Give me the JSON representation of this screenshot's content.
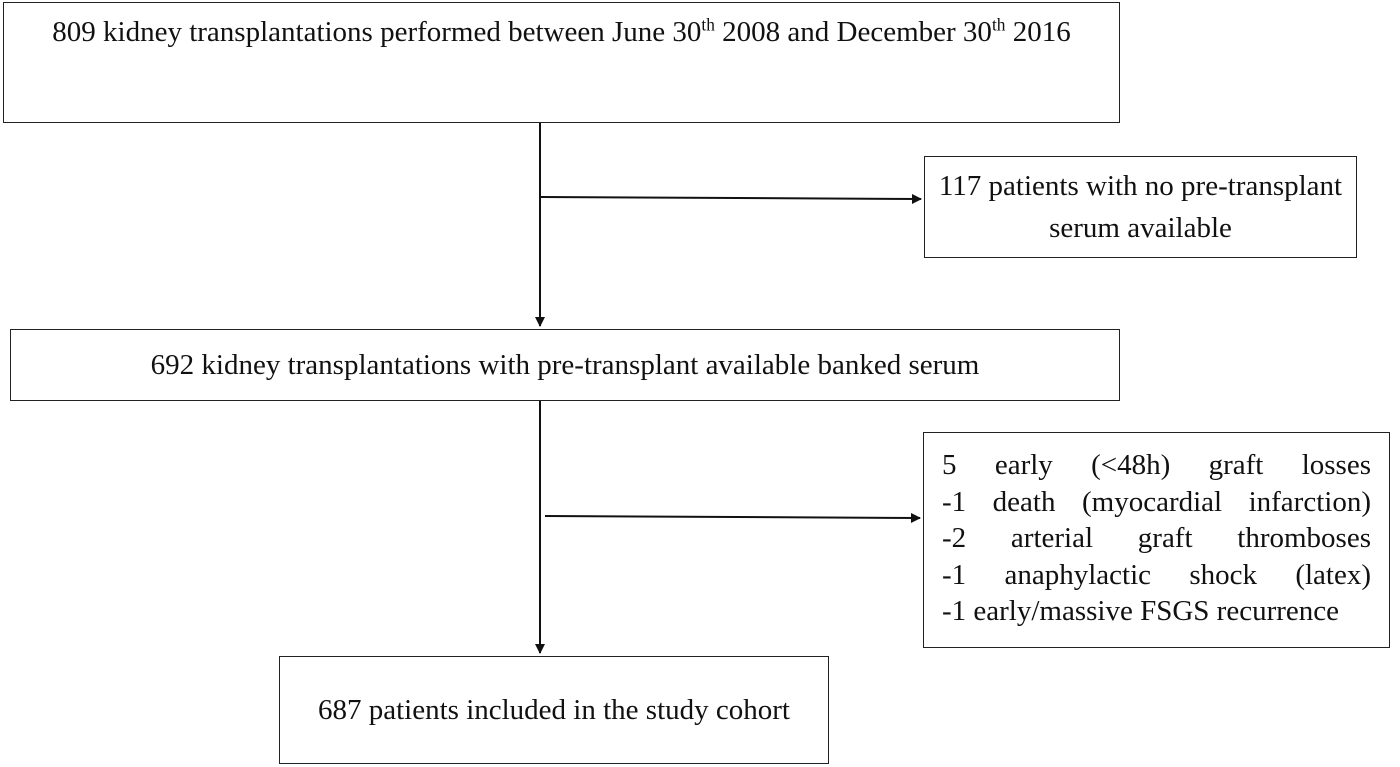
{
  "boxes": {
    "transplantations_total": {
      "segments": [
        "809 kidney transplantations performed between June 30",
        "th",
        " 2008 and December 30",
        "th",
        " 2016"
      ]
    },
    "no_serum": {
      "text": "117 patients with no pre-transplant serum available"
    },
    "with_serum": {
      "text": "692 kidney transplantations with pre-transplant available banked serum"
    },
    "exclusions": {
      "lines": [
        [
          "5",
          "early",
          "(<48h)",
          "graft",
          "losses"
        ],
        [
          "-1",
          "death",
          "(myocardial",
          "infarction)"
        ],
        [
          "-2",
          "arterial",
          "graft",
          "thromboses"
        ],
        [
          "-1",
          "anaphylactic",
          "shock",
          "(latex)"
        ]
      ],
      "last_line": "-1 early/massive FSGS recurrence"
    },
    "study_cohort": {
      "text": "687 patients included in the study cohort"
    }
  }
}
